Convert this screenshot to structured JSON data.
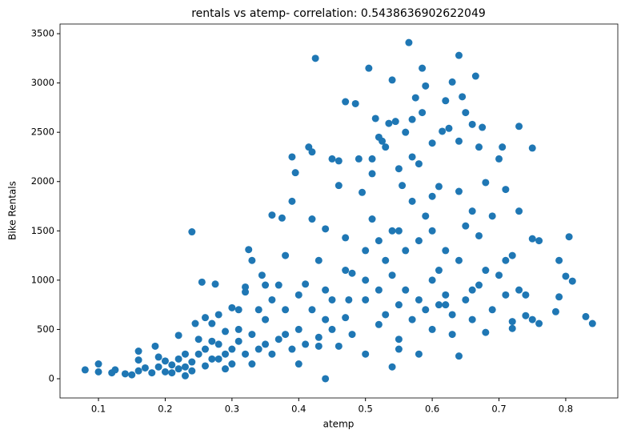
{
  "chart_data": {
    "type": "scatter",
    "title": "rentals vs atemp- correlation: 0.5438636902622049",
    "x_label": "atemp",
    "y_label": "Bike Rentals",
    "xlim": [
      0.0424,
      0.878
    ],
    "ylim": [
      -195,
      3598
    ],
    "xticks": [
      0.1,
      0.2,
      0.3,
      0.4,
      0.5,
      0.6,
      0.7,
      0.8
    ],
    "yticks": [
      0,
      500,
      1000,
      1500,
      2000,
      2500,
      3000,
      3500
    ],
    "grid": false,
    "color": "#1f77b4",
    "x": [
      0.08,
      0.1,
      0.1,
      0.12,
      0.125,
      0.14,
      0.15,
      0.16,
      0.16,
      0.16,
      0.17,
      0.18,
      0.185,
      0.19,
      0.19,
      0.2,
      0.21,
      0.22,
      0.22,
      0.23,
      0.23,
      0.24,
      0.24,
      0.245,
      0.25,
      0.255,
      0.26,
      0.26,
      0.27,
      0.27,
      0.275,
      0.28,
      0.28,
      0.29,
      0.29,
      0.3,
      0.3,
      0.31,
      0.31,
      0.32,
      0.32,
      0.325,
      0.33,
      0.33,
      0.34,
      0.345,
      0.35,
      0.35,
      0.36,
      0.36,
      0.37,
      0.375,
      0.38,
      0.38,
      0.39,
      0.39,
      0.395,
      0.39,
      0.4,
      0.4,
      0.41,
      0.415,
      0.42,
      0.42,
      0.425,
      0.43,
      0.43,
      0.44,
      0.44,
      0.44,
      0.45,
      0.45,
      0.46,
      0.46,
      0.47,
      0.47,
      0.475,
      0.48,
      0.485,
      0.49,
      0.495,
      0.5,
      0.505,
      0.51,
      0.51,
      0.51,
      0.515,
      0.52,
      0.52,
      0.525,
      0.53,
      0.535,
      0.54,
      0.54,
      0.545,
      0.55,
      0.55,
      0.555,
      0.56,
      0.565,
      0.57,
      0.57,
      0.575,
      0.58,
      0.585,
      0.585,
      0.59,
      0.6,
      0.6,
      0.61,
      0.615,
      0.62,
      0.625,
      0.63,
      0.64,
      0.64,
      0.645,
      0.65,
      0.66,
      0.665,
      0.67,
      0.675,
      0.68,
      0.7,
      0.705,
      0.71,
      0.73,
      0.73,
      0.75,
      0.75,
      0.76,
      0.79,
      0.8,
      0.805,
      0.81,
      0.79,
      0.785,
      0.83,
      0.84,
      0.76,
      0.72,
      0.72,
      0.74,
      0.64,
      0.68,
      0.54,
      0.46,
      0.5,
      0.5,
      0.52,
      0.53,
      0.54,
      0.55,
      0.56,
      0.57,
      0.58,
      0.59,
      0.6,
      0.61,
      0.62,
      0.63,
      0.64,
      0.65,
      0.66,
      0.67,
      0.68,
      0.69,
      0.7,
      0.71,
      0.72,
      0.58,
      0.62,
      0.65,
      0.67,
      0.69,
      0.6,
      0.55,
      0.52,
      0.48,
      0.47,
      0.45,
      0.43,
      0.42,
      0.41,
      0.4,
      0.38,
      0.37,
      0.36,
      0.35,
      0.34,
      0.33,
      0.32,
      0.31,
      0.3,
      0.29,
      0.28,
      0.27,
      0.26,
      0.25,
      0.24,
      0.23,
      0.22,
      0.21,
      0.2,
      0.53,
      0.56,
      0.61,
      0.66,
      0.63,
      0.57,
      0.59,
      0.6,
      0.64,
      0.66,
      0.5,
      0.47,
      0.44,
      0.55,
      0.58,
      0.62,
      0.74,
      0.71,
      0.75,
      0.73
    ],
    "values": [
      90,
      150,
      70,
      60,
      90,
      50,
      40,
      80,
      280,
      190,
      110,
      60,
      330,
      220,
      120,
      70,
      140,
      100,
      440,
      30,
      250,
      1490,
      170,
      560,
      400,
      980,
      620,
      300,
      200,
      560,
      960,
      650,
      350,
      250,
      480,
      720,
      150,
      380,
      700,
      930,
      880,
      1310,
      1200,
      450,
      300,
      1050,
      950,
      600,
      1660,
      800,
      400,
      1630,
      1250,
      700,
      1800,
      2250,
      2090,
      300,
      500,
      150,
      960,
      2350,
      2300,
      1620,
      3250,
      1200,
      330,
      1520,
      600,
      0,
      2230,
      800,
      1960,
      2210,
      1430,
      2810,
      800,
      1070,
      2790,
      2230,
      1890,
      800,
      3150,
      2080,
      1620,
      2230,
      2640,
      1400,
      2450,
      2410,
      2350,
      2590,
      3030,
      1500,
      2610,
      2130,
      1500,
      1960,
      2500,
      3410,
      2630,
      2250,
      2850,
      2180,
      2700,
      3150,
      2970,
      2390,
      1500,
      1950,
      2510,
      2820,
      2540,
      3010,
      3280,
      2410,
      2860,
      2700,
      2580,
      3070,
      2350,
      2550,
      1990,
      2230,
      2350,
      1920,
      2560,
      1700,
      2340,
      1420,
      1400,
      1200,
      1040,
      1440,
      990,
      830,
      680,
      630,
      560,
      560,
      510,
      580,
      640,
      230,
      470,
      120,
      330,
      250,
      1000,
      900,
      650,
      1050,
      750,
      900,
      600,
      800,
      700,
      1000,
      750,
      850,
      650,
      1200,
      800,
      600,
      950,
      1100,
      700,
      1050,
      850,
      1250,
      1400,
      1300,
      1550,
      1450,
      1650,
      500,
      400,
      550,
      450,
      620,
      500,
      420,
      700,
      350,
      850,
      450,
      950,
      250,
      350,
      700,
      150,
      250,
      500,
      300,
      100,
      200,
      380,
      130,
      250,
      80,
      120,
      200,
      60,
      180,
      1200,
      1300,
      1100,
      900,
      450,
      1800,
      1650,
      1850,
      1900,
      1700,
      1300,
      1100,
      900,
      300,
      250,
      750,
      850,
      1200,
      600,
      900
    ]
  }
}
